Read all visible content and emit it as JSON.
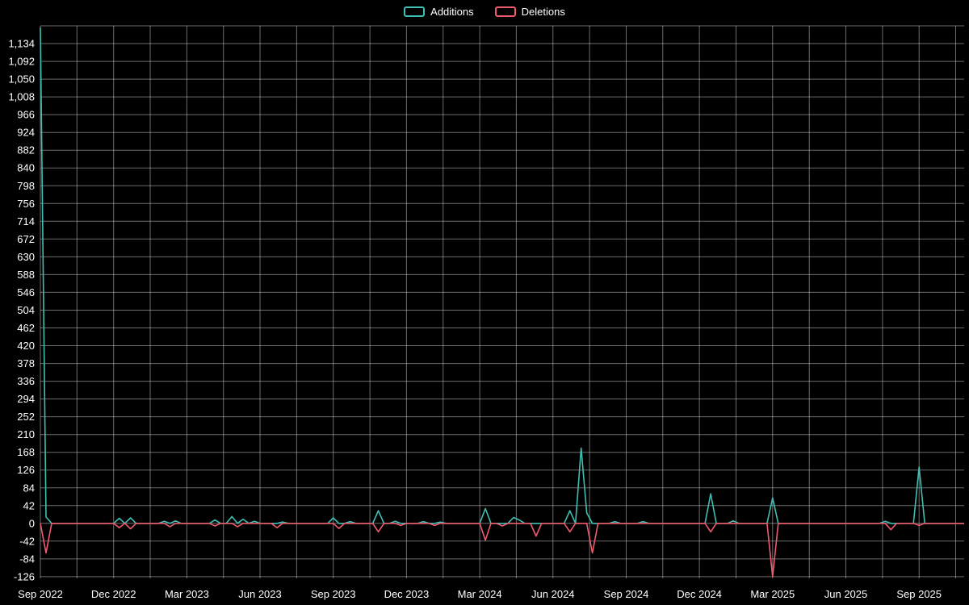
{
  "legend": {
    "items": [
      {
        "label": "Additions",
        "color": "#3fbfb4"
      },
      {
        "label": "Deletions",
        "color": "#ef5b6e"
      }
    ]
  },
  "chart_data": {
    "type": "line",
    "title": "",
    "legend_position": "top-center",
    "background_color": "#000000",
    "grid": {
      "horizontal": true,
      "vertical": true,
      "vertical_interval_weeks": 6.5,
      "color": "#ffffff",
      "opacity": 0.42
    },
    "x_axis": {
      "tick_labels": [
        "Sep 2022",
        "Dec 2022",
        "Mar 2023",
        "Jun 2023",
        "Sep 2023",
        "Dec 2023",
        "Mar 2024",
        "Jun 2024",
        "Sep 2024",
        "Dec 2024",
        "Mar 2025",
        "Jun 2025",
        "Sep 2025"
      ],
      "weeks_per_tick": 13
    },
    "y_axis": {
      "tick_labels": [
        "-126",
        "-84",
        "-42",
        "0",
        "42",
        "84",
        "126",
        "168",
        "210",
        "252",
        "294",
        "336",
        "378",
        "420",
        "462",
        "504",
        "546",
        "588",
        "630",
        "672",
        "714",
        "756",
        "798",
        "840",
        "882",
        "924",
        "966",
        "1,008",
        "1,050",
        "1,092",
        "1,134"
      ],
      "ticks": [
        -126,
        -84,
        -42,
        0,
        42,
        84,
        126,
        168,
        210,
        252,
        294,
        336,
        378,
        420,
        462,
        504,
        546,
        588,
        630,
        672,
        714,
        756,
        798,
        840,
        882,
        924,
        966,
        1008,
        1050,
        1092,
        1134
      ],
      "unlabeled_top_line": 1176,
      "range": [
        -130,
        1176
      ]
    },
    "total_weeks": 165,
    "default_value": 0,
    "series": [
      {
        "name": "Additions",
        "color": "#3fbfb4",
        "points": [
          [
            0,
            1172
          ],
          [
            1,
            15
          ],
          [
            14,
            12
          ],
          [
            16,
            13
          ],
          [
            22,
            5
          ],
          [
            24,
            6
          ],
          [
            31,
            8
          ],
          [
            34,
            16
          ],
          [
            36,
            10
          ],
          [
            38,
            5
          ],
          [
            43,
            3
          ],
          [
            52,
            13
          ],
          [
            55,
            4
          ],
          [
            60,
            30
          ],
          [
            63,
            5
          ],
          [
            68,
            4
          ],
          [
            71,
            3
          ],
          [
            79,
            35
          ],
          [
            84,
            14
          ],
          [
            85,
            8
          ],
          [
            94,
            30
          ],
          [
            96,
            178
          ],
          [
            97,
            25
          ],
          [
            102,
            4
          ],
          [
            107,
            4
          ],
          [
            119,
            70
          ],
          [
            123,
            6
          ],
          [
            130,
            60
          ],
          [
            150,
            5
          ],
          [
            156,
            133
          ]
        ]
      },
      {
        "name": "Deletions",
        "color": "#ef5b6e",
        "points": [
          [
            1,
            -70
          ],
          [
            14,
            -10
          ],
          [
            16,
            -13
          ],
          [
            23,
            -8
          ],
          [
            31,
            -6
          ],
          [
            35,
            -8
          ],
          [
            42,
            -10
          ],
          [
            53,
            -12
          ],
          [
            60,
            -20
          ],
          [
            64,
            -5
          ],
          [
            70,
            -5
          ],
          [
            79,
            -40
          ],
          [
            82,
            -6
          ],
          [
            88,
            -30
          ],
          [
            94,
            -20
          ],
          [
            98,
            -70
          ],
          [
            119,
            -20
          ],
          [
            130,
            -126
          ],
          [
            151,
            -15
          ],
          [
            156,
            -5
          ]
        ]
      }
    ]
  }
}
